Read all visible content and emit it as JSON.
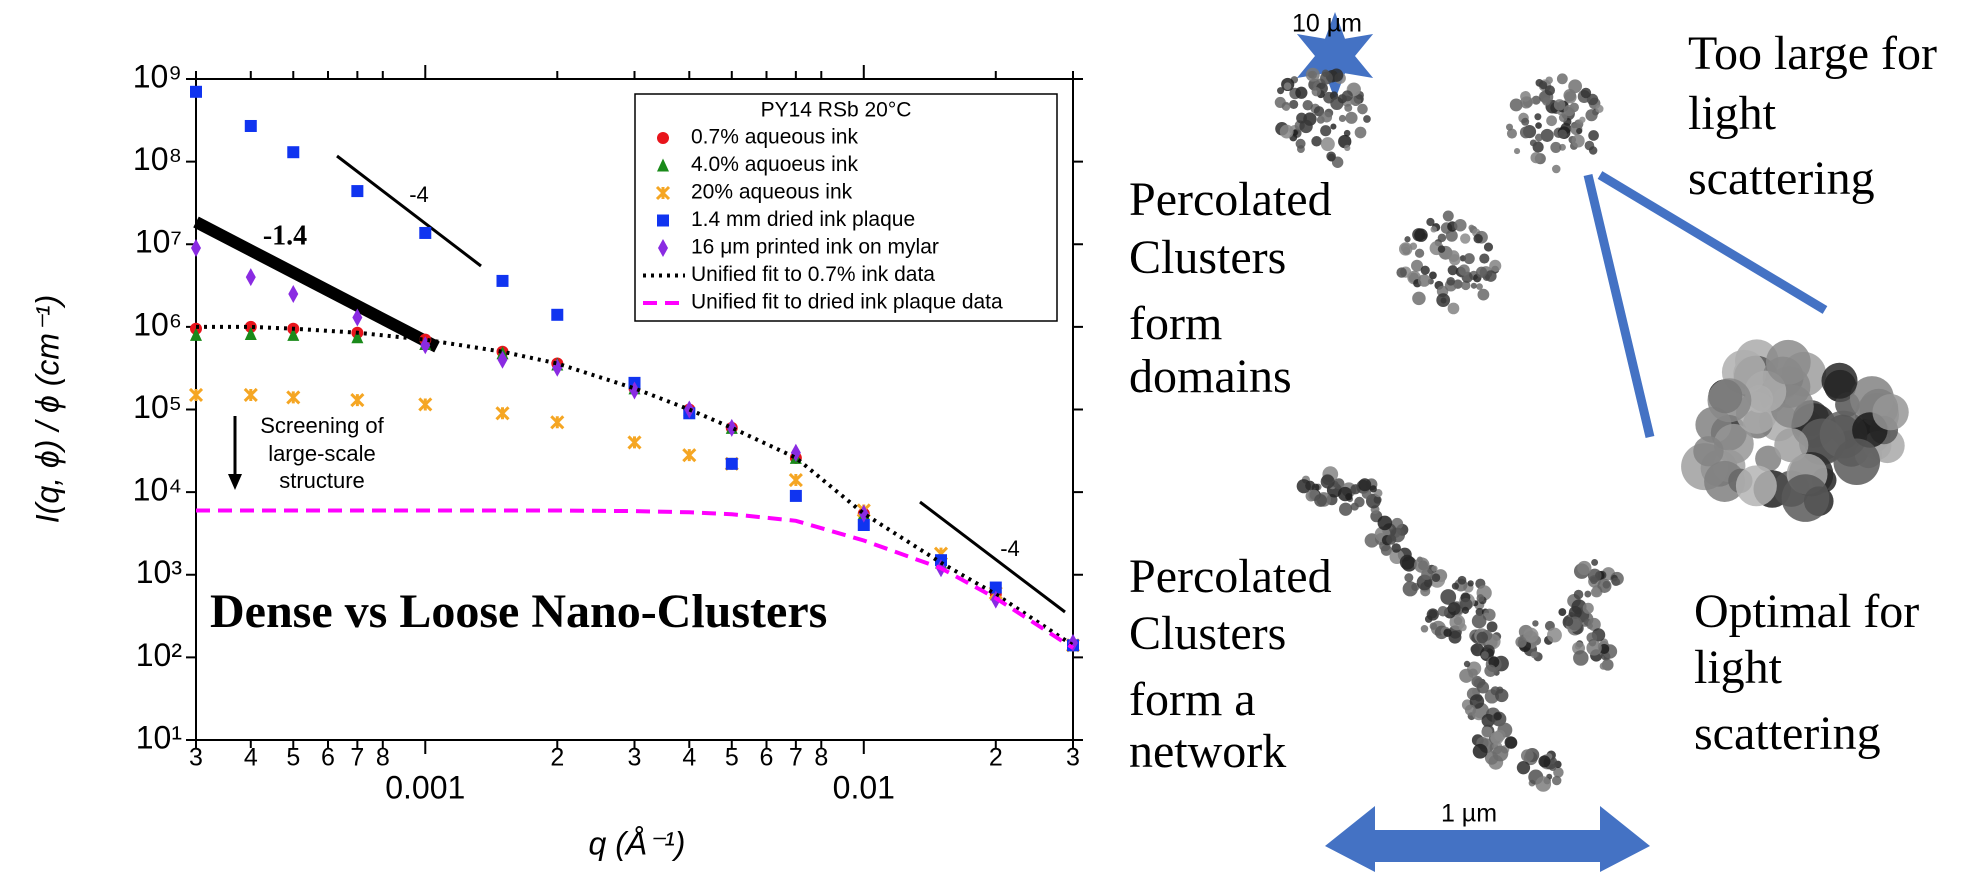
{
  "chart_data": {
    "type": "scatter",
    "xlabel": "q (Å⁻¹)",
    "ylabel": "I(q, ϕ) / ϕ (cm⁻¹)",
    "xscale": "log",
    "yscale": "log",
    "xlim": [
      0.0003,
      0.03
    ],
    "ylim": [
      10,
      1000000000
    ],
    "xticks": [
      {
        "value": 0.0003,
        "label": "3"
      },
      {
        "value": 0.0004,
        "label": "4"
      },
      {
        "value": 0.0005,
        "label": "5"
      },
      {
        "value": 0.0006,
        "label": "6"
      },
      {
        "value": 0.0007,
        "label": "7"
      },
      {
        "value": 0.0008,
        "label": "8"
      },
      0.001,
      {
        "value": 0.002,
        "label": "2"
      },
      {
        "value": 0.003,
        "label": "3"
      },
      {
        "value": 0.004,
        "label": "4"
      },
      {
        "value": 0.005,
        "label": "5"
      },
      {
        "value": 0.006,
        "label": "6"
      },
      {
        "value": 0.007,
        "label": "7"
      },
      {
        "value": 0.008,
        "label": "8"
      },
      0.01,
      {
        "value": 0.02,
        "label": "2"
      },
      {
        "value": 0.03,
        "label": "3"
      }
    ],
    "yticks": [
      {
        "value": 10,
        "label": "10¹"
      },
      {
        "value": 100,
        "label": "10²"
      },
      {
        "value": 1000,
        "label": "10³"
      },
      {
        "value": 10000,
        "label": "10⁴"
      },
      {
        "value": 100000,
        "label": "10⁵"
      },
      {
        "value": 1000000,
        "label": "10⁶"
      },
      {
        "value": 10000000,
        "label": "10⁷"
      },
      {
        "value": 100000000,
        "label": "10⁸"
      },
      {
        "value": 1000000000,
        "label": "10⁹"
      }
    ],
    "legend_title": "PY14 RSb 20°C",
    "legend": "upper right",
    "x": [
      0.0003,
      0.0004,
      0.0005,
      0.0007,
      0.001,
      0.0015,
      0.002,
      0.003,
      0.004,
      0.005,
      0.007,
      0.01,
      0.015,
      0.02,
      0.03
    ],
    "series": [
      {
        "name": "0.7% aqueous ink",
        "color": "#e8141b",
        "marker": "circle",
        "values": [
          950000,
          1000000,
          950000,
          850000,
          700000,
          500000,
          360000,
          180000,
          100000,
          60000,
          26000,
          5500,
          1400,
          580,
          140
        ]
      },
      {
        "name": "4.0% aquoeus ink",
        "color": "#1a8a1a",
        "marker": "triangle",
        "values": [
          800000,
          820000,
          800000,
          750000,
          620000,
          480000,
          350000,
          180000,
          100000,
          60000,
          26000,
          5500,
          1400,
          580,
          140
        ]
      },
      {
        "name": "20% aqueous ink",
        "color": "#f5a623",
        "marker": "cross",
        "values": [
          150000,
          150000,
          140000,
          130000,
          115000,
          90000,
          70000,
          40000,
          28000,
          22000,
          14000,
          6000,
          1800,
          600,
          140
        ]
      },
      {
        "name": "1.4 mm dried ink plaque",
        "color": "#1034f0",
        "marker": "square",
        "values": [
          700000000,
          270000000,
          130000000,
          44000000,
          13700000,
          3600000,
          1400000,
          210000,
          90000,
          22000,
          9000,
          4000,
          1500,
          700,
          140
        ]
      },
      {
        "name": "16 μm printed ink on mylar",
        "color": "#8a2be2",
        "marker": "diamond",
        "values": [
          9000000,
          4000000,
          2500000,
          1300000,
          600000,
          400000,
          320000,
          170000,
          100000,
          60000,
          30000,
          5500,
          1200,
          500,
          150
        ]
      },
      {
        "name": "Unified fit to 0.7% ink data",
        "color": "#000000",
        "linestyle": "dotted",
        "values": [
          1000000,
          1000000,
          950000,
          850000,
          700000,
          500000,
          360000,
          180000,
          100000,
          60000,
          26000,
          5500,
          1400,
          580,
          140
        ]
      },
      {
        "name": "Unified fit to dried ink plaque data",
        "color": "#ff00ff",
        "linestyle": "dashed",
        "values": [
          6000,
          6000,
          6000,
          6000,
          6000,
          6000,
          6000,
          5900,
          5700,
          5400,
          4500,
          2600,
          1200,
          520,
          130
        ]
      }
    ],
    "annotations": [
      "-4",
      "-1.4",
      "-4",
      "Screening of",
      "large-scale",
      "structure",
      "Dense vs Loose Nano-Clusters"
    ]
  },
  "diagram": {
    "scale_top": "10 µm",
    "scale_bottom": "1 µm",
    "labels": [
      [
        "Percolated",
        "Clusters",
        "form",
        "domains"
      ],
      [
        "Too large for",
        "light",
        "scattering"
      ],
      [
        "Percolated",
        "Clusters",
        "form a",
        "network"
      ],
      [
        "Optimal for",
        "light",
        "scattering"
      ]
    ]
  }
}
